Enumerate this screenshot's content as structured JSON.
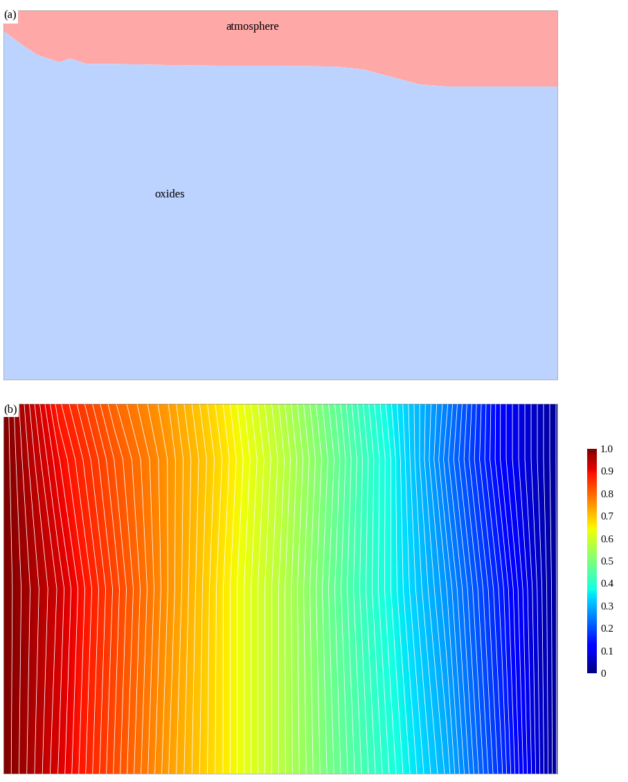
{
  "chart_data": [
    {
      "type": "phase_map",
      "panel": "(a)",
      "xlim": [
        0,
        1
      ],
      "ylim": [
        0,
        1
      ],
      "tick_labels": false,
      "regions": [
        {
          "name": "atmosphere",
          "color": "#ffa8a8"
        },
        {
          "name": "oxides",
          "color": "#bcd2ff"
        }
      ],
      "interface": {
        "x": [
          0,
          0.03,
          0.06,
          0.1,
          0.12,
          0.15,
          0.2,
          0.3,
          0.4,
          0.5,
          0.6,
          0.65,
          0.7,
          0.75,
          0.8,
          1.0
        ],
        "y": [
          0.944,
          0.91,
          0.88,
          0.86,
          0.87,
          0.855,
          0.855,
          0.852,
          0.85,
          0.85,
          0.848,
          0.84,
          0.82,
          0.8,
          0.794,
          0.794
        ]
      }
    },
    {
      "type": "contour",
      "panel": "(b)",
      "xlim": [
        0,
        1
      ],
      "ylim": [
        0,
        1
      ],
      "tick_labels": false,
      "x": [
        0,
        0.1,
        0.2,
        0.3,
        0.4,
        0.5,
        0.6,
        0.7,
        0.8,
        0.9,
        1.0
      ],
      "y": [
        0,
        0.5,
        0.85,
        1.0
      ],
      "cells": [
        [
          1.0,
          0.92,
          0.83,
          0.74,
          0.66,
          0.57,
          0.48,
          0.39,
          0.3,
          0.17,
          0.02
        ],
        [
          1.0,
          0.93,
          0.84,
          0.75,
          0.66,
          0.57,
          0.47,
          0.37,
          0.27,
          0.15,
          0.02
        ],
        [
          1.0,
          0.9,
          0.82,
          0.75,
          0.67,
          0.58,
          0.48,
          0.37,
          0.24,
          0.12,
          0.02
        ],
        [
          1.0,
          0.88,
          0.8,
          0.74,
          0.66,
          0.57,
          0.47,
          0.36,
          0.25,
          0.12,
          0.02
        ]
      ],
      "colorbar": {
        "range": [
          0,
          1
        ],
        "ticks": [
          0,
          0.1,
          0.2,
          0.3,
          0.4,
          0.5,
          0.6,
          0.7,
          0.8,
          0.9,
          {
            "value": 1,
            "label": "1.0"
          }
        ]
      }
    }
  ]
}
